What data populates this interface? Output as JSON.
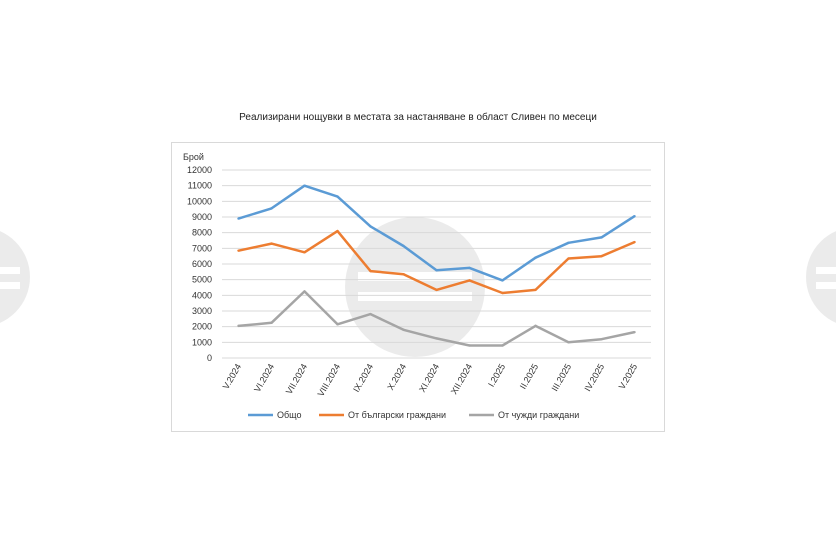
{
  "chart_data": {
    "type": "line",
    "title": "Реализирани нощувки в местата за настаняване в област Сливен по месеци",
    "ylabel": "Брой",
    "xlabel": "",
    "ylim": [
      0,
      12000
    ],
    "yticks": [
      0,
      1000,
      2000,
      3000,
      4000,
      5000,
      6000,
      7000,
      8000,
      9000,
      10000,
      11000,
      12000
    ],
    "grid": true,
    "legend_position": "bottom",
    "categories": [
      "V.2024",
      "VI.2024",
      "VII.2024",
      "VIII.2024",
      "IX.2024",
      "X.2024",
      "XI.2024",
      "XII.2024",
      "I.2025",
      "II.2025",
      "III.2025",
      "IV.2025",
      "V.2025"
    ],
    "series": [
      {
        "name": "Общо",
        "color": "#5b9bd5",
        "values": [
          8900,
          9550,
          11000,
          10300,
          8400,
          7150,
          5600,
          5750,
          4950,
          6400,
          7350,
          7700,
          9050
        ]
      },
      {
        "name": "От български граждани",
        "color": "#ed7d31",
        "values": [
          6850,
          7300,
          6750,
          8100,
          5550,
          5350,
          4350,
          4950,
          4150,
          4350,
          6350,
          6500,
          7400
        ]
      },
      {
        "name": "От чужди граждани",
        "color": "#a5a5a5",
        "values": [
          2050,
          2250,
          4250,
          2150,
          2800,
          1800,
          1250,
          800,
          800,
          2050,
          1000,
          1200,
          1650
        ]
      }
    ]
  }
}
